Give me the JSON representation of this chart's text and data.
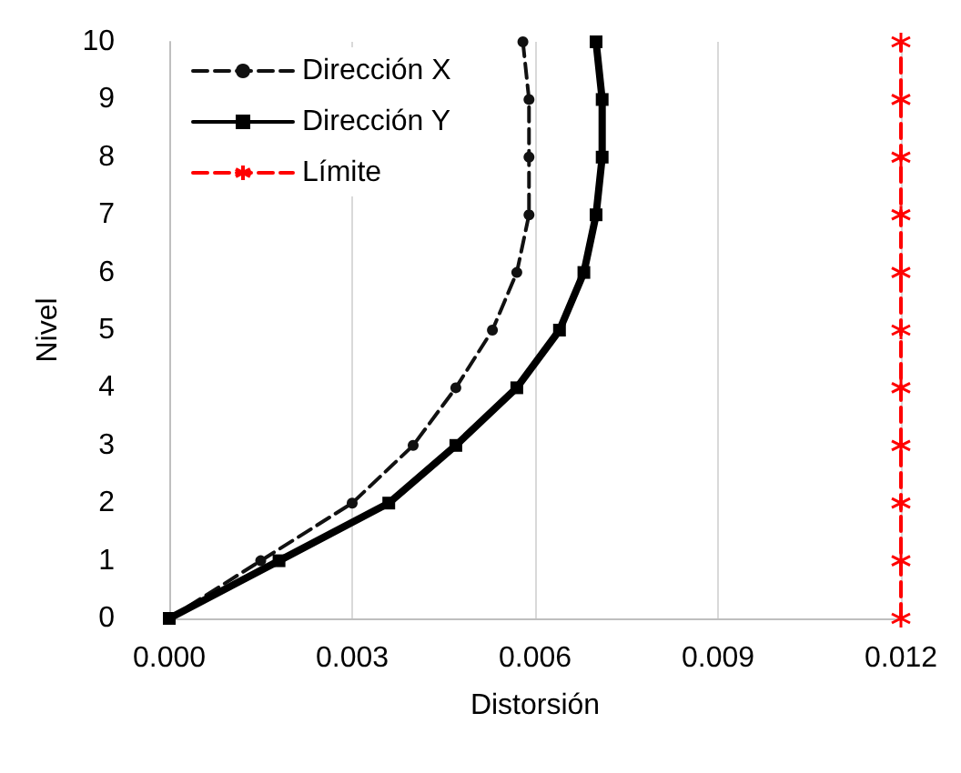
{
  "chart_data": {
    "type": "line",
    "xlabel": "Distorsión",
    "ylabel": "Nivel",
    "xlim": [
      0,
      0.012
    ],
    "xticks": [
      {
        "value": 0,
        "label": "0.000"
      },
      {
        "value": 0.003,
        "label": "0.003"
      },
      {
        "value": 0.006,
        "label": "0.006"
      },
      {
        "value": 0.009,
        "label": "0.009"
      },
      {
        "value": 0.012,
        "label": "0.012"
      }
    ],
    "ylim": [
      0,
      10
    ],
    "yticks": [
      0,
      1,
      2,
      3,
      4,
      5,
      6,
      7,
      8,
      9,
      10
    ],
    "grid": "x",
    "legend": "top left",
    "series": [
      {
        "name": "Dirección X",
        "color": "#111111",
        "marker": "circle",
        "line_style": "dashed",
        "x": [
          0,
          0.0015,
          0.003,
          0.004,
          0.0047,
          0.0053,
          0.0057,
          0.0059,
          0.0059,
          0.0059,
          0.0058
        ],
        "values": [
          0,
          1,
          2,
          3,
          4,
          5,
          6,
          7,
          8,
          9,
          10
        ]
      },
      {
        "name": "Dirección Y",
        "color": "#000000",
        "marker": "square",
        "line_style": "solid",
        "x": [
          0,
          0.0018,
          0.0036,
          0.0047,
          0.0057,
          0.0064,
          0.0068,
          0.007,
          0.0071,
          0.0071,
          0.007
        ],
        "values": [
          0,
          1,
          2,
          3,
          4,
          5,
          6,
          7,
          8,
          9,
          10
        ]
      },
      {
        "name": "Límite",
        "color": "#ff0000",
        "marker": "cross",
        "line_style": "dashed",
        "x": [
          0.012,
          0.012,
          0.012,
          0.012,
          0.012,
          0.012,
          0.012,
          0.012,
          0.012,
          0.012,
          0.012
        ],
        "values": [
          0,
          1,
          2,
          3,
          4,
          5,
          6,
          7,
          8,
          9,
          10
        ]
      }
    ]
  }
}
